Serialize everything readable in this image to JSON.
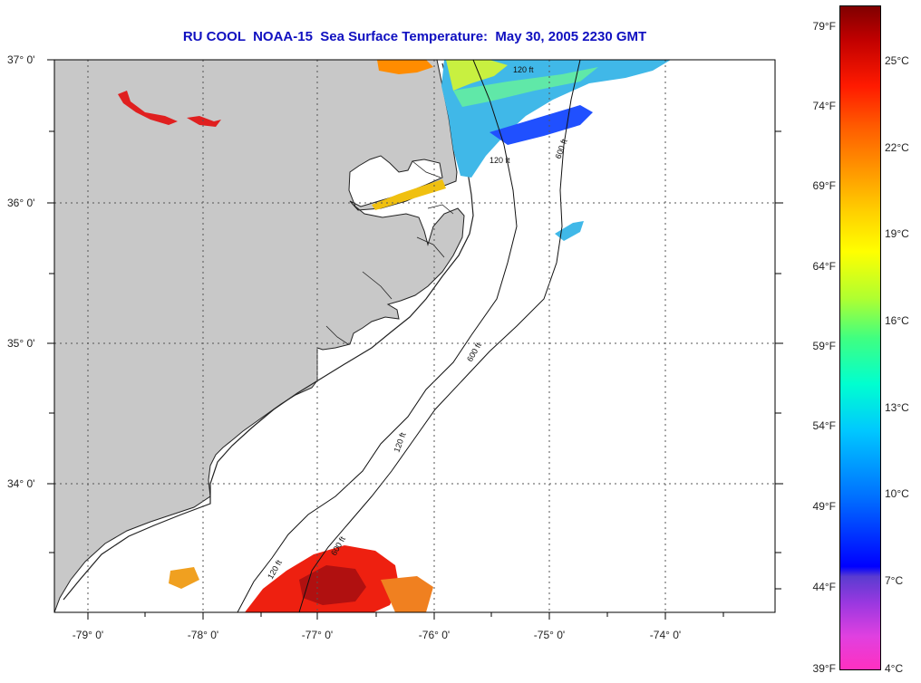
{
  "title": "RU COOL  NOAA-15  Sea Surface Temperature:  May 30, 2005 2230 GMT",
  "latitude_labels": [
    "37° 0'",
    "36° 0'",
    "35° 0'",
    "34° 0'"
  ],
  "longitude_labels": [
    "-79° 0'",
    "-78° 0'",
    "-77° 0'",
    "-76° 0'",
    "-75° 0'",
    "-74° 0'"
  ],
  "isobath_labels": [
    "120 ft",
    "600 ft"
  ],
  "colorbar": {
    "fahrenheit_labels": [
      "79°F",
      "74°F",
      "69°F",
      "64°F",
      "59°F",
      "54°F",
      "49°F",
      "44°F",
      "39°F"
    ],
    "celsius_labels": [
      "25°C",
      "22°C",
      "19°C",
      "16°C",
      "13°C",
      "10°C",
      "7°C",
      "4°C"
    ]
  },
  "colors": {
    "land": "#c8c8c8",
    "title": "#1010c0",
    "warm_water": "#ee2010",
    "cool_water": "#40b8e8"
  }
}
